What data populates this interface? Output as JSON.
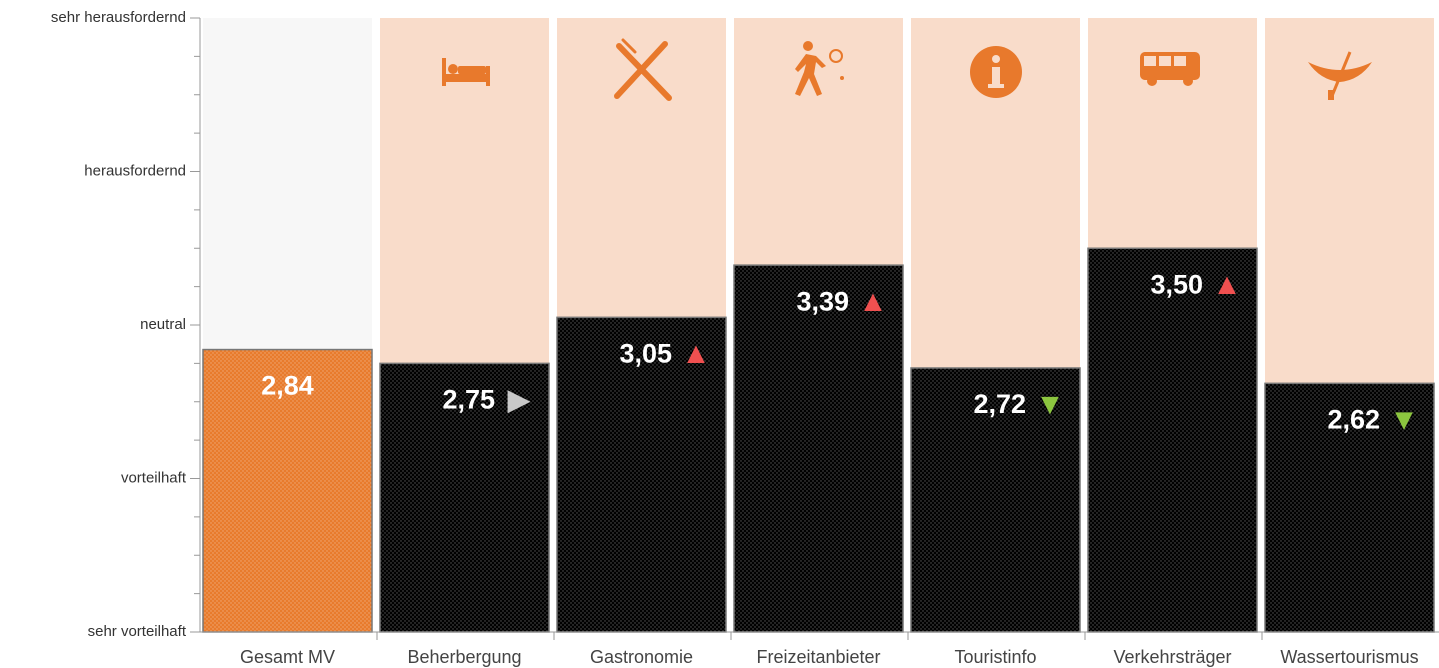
{
  "chart_data": {
    "type": "bar",
    "categories": [
      "Gesamt MV",
      "Beherbergung",
      "Gastronomie",
      "Freizeitanbieter",
      "Touristinfo",
      "Verkehrsträger",
      "Wassertourismus"
    ],
    "values": [
      2.84,
      2.75,
      3.05,
      3.39,
      2.72,
      3.5,
      2.62
    ],
    "value_labels": [
      "2,84",
      "2,75",
      "3,05",
      "3,39",
      "2,72",
      "3,50",
      "2,62"
    ],
    "colors": [
      "#e87b2c",
      "#000000",
      "#000000",
      "#000000",
      "#000000",
      "#000000",
      "#000000"
    ],
    "background_colors": [
      "#f7f7f7",
      "#f9dcca",
      "#f9dcca",
      "#f9dcca",
      "#f9dcca",
      "#f9dcca",
      "#f9dcca"
    ],
    "trend": [
      null,
      "▶",
      "▲",
      "▲",
      "▼",
      "▲",
      "▼"
    ],
    "trend_colors": [
      null,
      "#c8c8c8",
      "#f05050",
      "#f05050",
      "#8cc63f",
      "#f05050",
      "#8cc63f"
    ],
    "ylim": [
      1,
      5
    ],
    "yticks": [
      {
        "value": 1,
        "label": "sehr vorteilhaft"
      },
      {
        "value": 2,
        "label": "vorteilhaft"
      },
      {
        "value": 3,
        "label": "neutral"
      },
      {
        "value": 4,
        "label": "herausfordernd"
      },
      {
        "value": 5,
        "label": "sehr herausfordernd"
      }
    ],
    "yminorticks": [
      1.25,
      1.5,
      1.75,
      2.25,
      2.5,
      2.75,
      3.25,
      3.5,
      3.75,
      4.25,
      4.5,
      4.75
    ]
  }
}
